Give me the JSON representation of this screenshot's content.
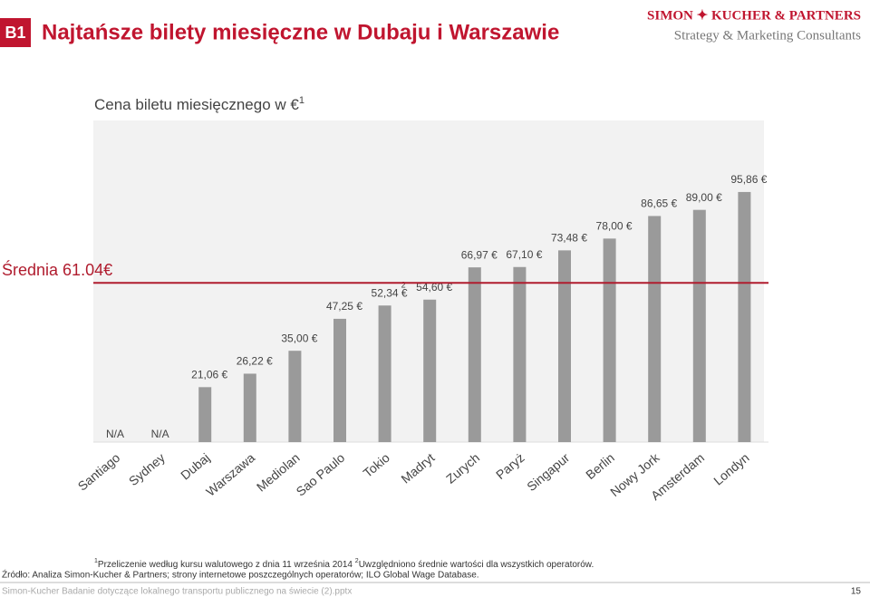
{
  "header": {
    "badge": "B1",
    "title": "Najtańsze bilety miesięczne w Dubaju i Warszawie",
    "logo_line1": "SIMON ✦ KUCHER & PARTNERS",
    "logo_line2": "Strategy & Marketing Consultants"
  },
  "chart_data": {
    "type": "bar",
    "title": "Cena biletu miesięcznego w €",
    "title_marker": "1",
    "categories": [
      "Santiago",
      "Sydney",
      "Dubaj",
      "Warszawa",
      "Mediolan",
      "Sao Paulo",
      "Tokio",
      "Madryt",
      "Zurych",
      "Paryż",
      "Singapur",
      "Berlin",
      "Nowy Jork",
      "Amsterdam",
      "Londyn"
    ],
    "values": [
      null,
      null,
      21.06,
      26.22,
      35.0,
      47.25,
      52.34,
      54.6,
      66.97,
      67.1,
      73.48,
      78.0,
      86.65,
      89.0,
      95.86
    ],
    "value_labels": [
      "N/A",
      "N/A",
      "21,06 €",
      "26,22 €",
      "35,00 €",
      "47,25 €",
      "52,34 €",
      "54,60 €",
      "66,97 €",
      "67,10 €",
      "73,48 €",
      "78,00 €",
      "86,65 €",
      "89,00 €",
      "95,86 €"
    ],
    "annotations": [
      {
        "text": "2",
        "category": "Tokio"
      }
    ],
    "color": "#9a9a9a",
    "ylim": [
      0,
      100
    ],
    "average": {
      "label": "Średnia 61.04€",
      "value": 61.04,
      "color": "#b01c2e"
    }
  },
  "footnotes": [
    {
      "marker": "1",
      "text": "Przeliczenie według kursu walutowego z dnia 11 września 2014 "
    },
    {
      "marker": "2",
      "text": "Uwzględniono średnie wartości dla wszystkich operatorów."
    }
  ],
  "source": "Źródło: Analiza Simon-Kucher & Partners; strony internetowe poszczególnych operatorów; ILO Global Wage Database.",
  "footer": {
    "file": "Simon-Kucher Badanie dotyczące lokalnego transportu publicznego na świecie (2).pptx",
    "page": "15"
  }
}
